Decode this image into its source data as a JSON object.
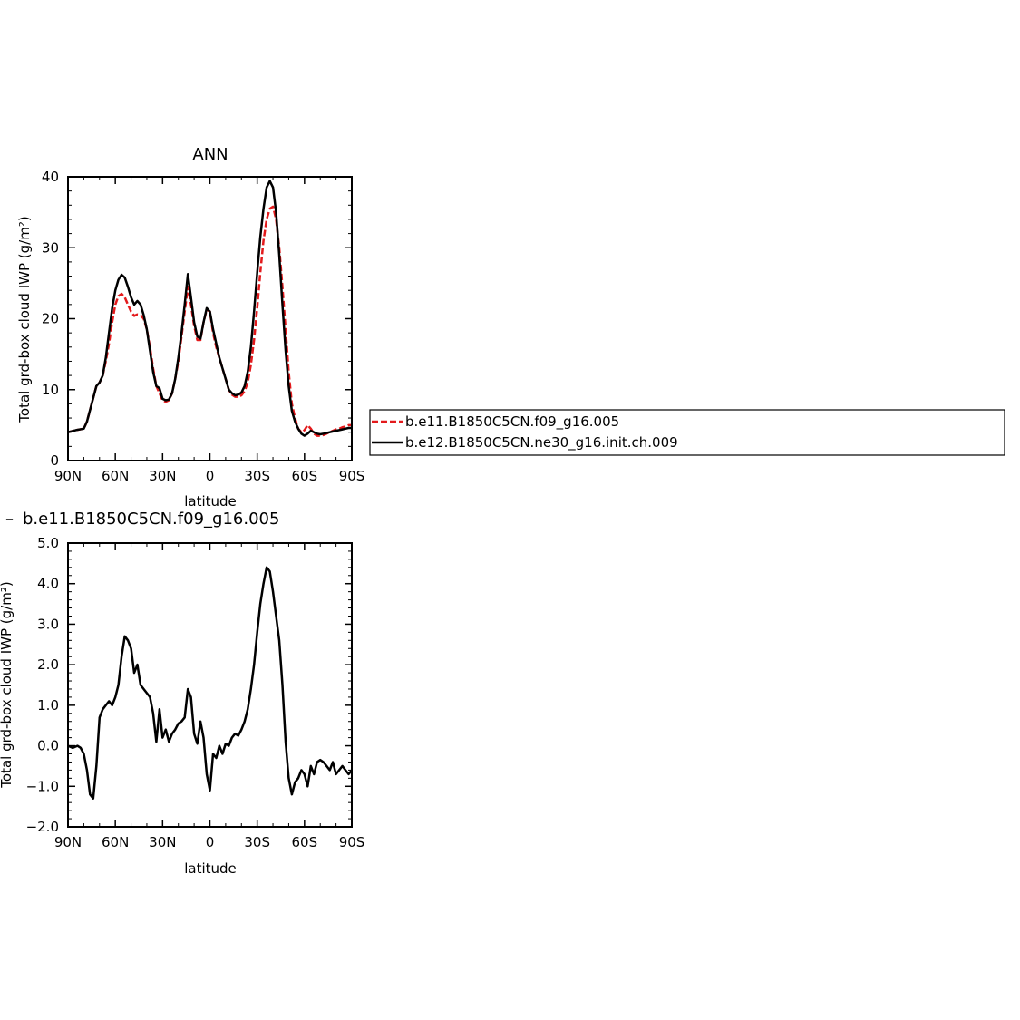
{
  "chart_data": [
    {
      "type": "line",
      "title": "ANN",
      "xlabel": "latitude",
      "ylabel": "Total grd-box cloud IWP (g/m²)",
      "xlim": [
        90,
        -90
      ],
      "ylim": [
        0,
        40
      ],
      "xticks": [
        90,
        60,
        30,
        0,
        -30,
        -60,
        -90
      ],
      "xtick_labels": [
        "90N",
        "60N",
        "30N",
        "0",
        "30S",
        "60S",
        "90S"
      ],
      "yticks": [
        0,
        10,
        20,
        30,
        40
      ],
      "ytick_labels": [
        "0",
        "10",
        "20",
        "30",
        "40"
      ],
      "grid": false,
      "legend_position": "right",
      "series": [
        {
          "name": "b.e11.B1850C5CN.f09_g16.005",
          "color": "#e31a1c",
          "dash": true,
          "x": [
            90,
            85,
            80,
            78,
            75,
            72,
            70,
            68,
            66,
            64,
            62,
            60,
            58,
            56,
            54,
            52,
            50,
            48,
            46,
            44,
            42,
            40,
            38,
            36,
            34,
            32,
            30,
            28,
            26,
            24,
            22,
            20,
            18,
            16,
            14,
            12,
            10,
            8,
            6,
            4,
            2,
            0,
            -2,
            -4,
            -6,
            -8,
            -10,
            -12,
            -14,
            -16,
            -18,
            -20,
            -22,
            -24,
            -26,
            -28,
            -30,
            -32,
            -34,
            -36,
            -38,
            -40,
            -42,
            -44,
            -46,
            -48,
            -50,
            -52,
            -54,
            -56,
            -58,
            -60,
            -62,
            -64,
            -66,
            -68,
            -70,
            -72,
            -74,
            -76,
            -78,
            -80,
            -82,
            -84,
            -86,
            -88,
            -90
          ],
          "y": [
            4.0,
            4.3,
            4.5,
            5.5,
            8.0,
            10.5,
            11.0,
            12.0,
            14.0,
            16.5,
            19.5,
            22.0,
            23.2,
            23.5,
            23.0,
            22.0,
            21.0,
            20.4,
            20.6,
            20.5,
            20.0,
            18.5,
            16.0,
            13.0,
            10.5,
            9.5,
            8.5,
            8.3,
            8.5,
            9.5,
            11.5,
            14.0,
            17.5,
            21.0,
            24.5,
            22.0,
            19.0,
            17.0,
            17.0,
            19.5,
            21.3,
            21.0,
            18.0,
            16.0,
            14.5,
            13.0,
            11.5,
            10.0,
            9.3,
            9.0,
            9.0,
            9.2,
            9.8,
            11.0,
            13.5,
            17.0,
            21.5,
            26.5,
            31.0,
            34.0,
            35.5,
            35.8,
            34.0,
            30.0,
            24.5,
            18.5,
            12.5,
            8.0,
            6.0,
            4.5,
            4.0,
            4.3,
            5.0,
            4.5,
            3.8,
            3.5,
            3.5,
            3.6,
            3.8,
            4.0,
            4.2,
            4.4,
            4.5,
            4.7,
            4.8,
            5.0,
            5.0
          ]
        },
        {
          "name": "b.e12.B1850C5CN.ne30_g16.init.ch.009",
          "color": "#000000",
          "dash": false,
          "x": [
            90,
            85,
            80,
            78,
            75,
            72,
            70,
            68,
            66,
            64,
            62,
            60,
            58,
            56,
            54,
            52,
            50,
            48,
            46,
            44,
            42,
            40,
            38,
            36,
            34,
            32,
            30,
            28,
            26,
            24,
            22,
            20,
            18,
            16,
            14,
            12,
            10,
            8,
            6,
            4,
            2,
            0,
            -2,
            -4,
            -6,
            -8,
            -10,
            -12,
            -14,
            -16,
            -18,
            -20,
            -22,
            -24,
            -26,
            -28,
            -30,
            -32,
            -34,
            -36,
            -38,
            -40,
            -42,
            -44,
            -46,
            -48,
            -50,
            -52,
            -54,
            -56,
            -58,
            -60,
            -62,
            -64,
            -66,
            -68,
            -70,
            -72,
            -74,
            -76,
            -78,
            -80,
            -82,
            -84,
            -86,
            -88,
            -90
          ],
          "y": [
            4.0,
            4.3,
            4.5,
            5.5,
            8.0,
            10.5,
            11.0,
            12.0,
            14.5,
            18.0,
            21.5,
            24.0,
            25.5,
            26.2,
            25.8,
            24.5,
            23.0,
            22.0,
            22.5,
            22.0,
            20.5,
            18.5,
            15.5,
            12.5,
            10.5,
            10.2,
            8.7,
            8.5,
            8.6,
            9.5,
            11.5,
            14.5,
            18.0,
            22.0,
            26.3,
            23.0,
            19.5,
            17.5,
            17.2,
            19.5,
            21.5,
            21.0,
            18.5,
            16.5,
            14.5,
            13.0,
            11.5,
            10.0,
            9.5,
            9.2,
            9.3,
            9.6,
            10.5,
            12.5,
            16.0,
            21.0,
            26.5,
            31.5,
            35.5,
            38.5,
            39.4,
            38.5,
            35.0,
            29.0,
            22.0,
            15.5,
            10.5,
            7.0,
            5.5,
            4.5,
            3.8,
            3.5,
            3.8,
            4.2,
            4.0,
            3.8,
            3.7,
            3.8,
            3.9,
            4.0,
            4.1,
            4.2,
            4.3,
            4.4,
            4.5,
            4.6,
            4.6
          ]
        }
      ]
    },
    {
      "type": "line",
      "title": "b.e11.B1850C5CN.f09_g16.005",
      "title_prefix": "–",
      "xlabel": "latitude",
      "ylabel": "Total grd-box cloud IWP (g/m²)",
      "xlim": [
        90,
        -90
      ],
      "ylim": [
        -2.0,
        5.0
      ],
      "xticks": [
        90,
        60,
        30,
        0,
        -30,
        -60,
        -90
      ],
      "xtick_labels": [
        "90N",
        "60N",
        "30N",
        "0",
        "30S",
        "60S",
        "90S"
      ],
      "yticks": [
        -2.0,
        -1.0,
        0.0,
        1.0,
        2.0,
        3.0,
        4.0,
        5.0
      ],
      "ytick_labels": [
        "−2.0",
        "−1.0",
        "0.0",
        "1.0",
        "2.0",
        "3.0",
        "4.0",
        "5.0"
      ],
      "grid": false,
      "series": [
        {
          "color": "#000000",
          "dash": false,
          "x": [
            90,
            87,
            84,
            82,
            80,
            78,
            76,
            74,
            72,
            70,
            68,
            66,
            64,
            62,
            60,
            58,
            56,
            54,
            52,
            50,
            48,
            46,
            44,
            42,
            40,
            38,
            36,
            34,
            32,
            30,
            28,
            26,
            24,
            22,
            20,
            18,
            16,
            14,
            12,
            10,
            8,
            6,
            4,
            2,
            0,
            -2,
            -4,
            -6,
            -8,
            -10,
            -12,
            -14,
            -16,
            -18,
            -20,
            -22,
            -24,
            -26,
            -28,
            -30,
            -32,
            -34,
            -36,
            -38,
            -40,
            -42,
            -44,
            -46,
            -48,
            -50,
            -52,
            -54,
            -56,
            -58,
            -60,
            -62,
            -64,
            -66,
            -68,
            -70,
            -72,
            -74,
            -76,
            -78,
            -80,
            -82,
            -84,
            -86,
            -88,
            -90
          ],
          "y": [
            0.0,
            -0.05,
            0.0,
            -0.05,
            -0.2,
            -0.6,
            -1.2,
            -1.3,
            -0.5,
            0.7,
            0.9,
            1.0,
            1.1,
            1.0,
            1.2,
            1.5,
            2.2,
            2.7,
            2.6,
            2.4,
            1.8,
            2.0,
            1.5,
            1.4,
            1.3,
            1.2,
            0.8,
            0.1,
            0.9,
            0.2,
            0.4,
            0.1,
            0.3,
            0.4,
            0.55,
            0.6,
            0.7,
            1.4,
            1.2,
            0.3,
            0.05,
            0.6,
            0.2,
            -0.7,
            -1.1,
            -0.2,
            -0.3,
            0.0,
            -0.2,
            0.05,
            0.0,
            0.2,
            0.3,
            0.25,
            0.4,
            0.6,
            0.9,
            1.4,
            2.0,
            2.8,
            3.5,
            4.0,
            4.4,
            4.3,
            3.8,
            3.2,
            2.6,
            1.5,
            0.1,
            -0.8,
            -1.2,
            -0.9,
            -0.8,
            -0.6,
            -0.7,
            -1.0,
            -0.5,
            -0.7,
            -0.4,
            -0.35,
            -0.4,
            -0.5,
            -0.6,
            -0.4,
            -0.7,
            -0.6,
            -0.5,
            -0.6,
            -0.7,
            -0.6
          ]
        }
      ]
    }
  ]
}
